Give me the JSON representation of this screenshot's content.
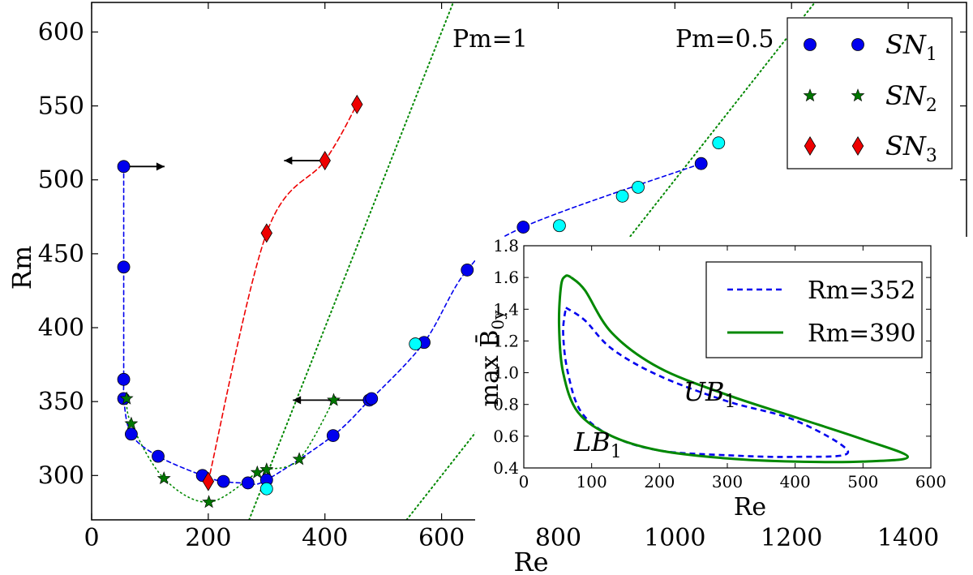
{
  "chart_data": [
    {
      "type": "scatter",
      "xlabel": "Re",
      "ylabel": "Rm",
      "xlim": [
        0,
        1500
      ],
      "ylim": [
        270,
        620
      ],
      "xticks": [
        0,
        200,
        400,
        600,
        800,
        1000,
        1200,
        1400
      ],
      "yticks": [
        300,
        350,
        400,
        450,
        500,
        550,
        600
      ],
      "grid": false,
      "legend_position": "top-right",
      "series": [
        {
          "name": "SN_1",
          "legend_main": "SN",
          "legend_sub": "1",
          "marker": "circle",
          "color": "#0000ee",
          "line_color": "#0000ee",
          "points": [
            [
              55,
              509
            ],
            [
              55,
              441
            ],
            [
              55,
              365
            ],
            [
              55,
              352
            ],
            [
              68,
              328
            ],
            [
              114,
              313
            ],
            [
              190,
              300
            ],
            [
              226,
              296
            ],
            [
              268,
              295
            ],
            [
              300,
              297
            ],
            [
              414,
              327
            ],
            [
              476,
              351
            ],
            [
              480,
              352
            ],
            [
              570,
              390
            ],
            [
              644,
              439
            ],
            [
              740,
              468
            ],
            [
              1045,
              511
            ]
          ]
        },
        {
          "name": "SN_1 (unstable)",
          "marker": "circle",
          "color": "#00ffff",
          "in_legend": false,
          "points": [
            [
              300,
              291
            ],
            [
              555,
              389
            ],
            [
              802,
              469
            ],
            [
              910,
              489
            ],
            [
              937,
              495
            ],
            [
              1075,
              525
            ]
          ]
        },
        {
          "name": "SN_2",
          "legend_main": "SN",
          "legend_sub": "2",
          "marker": "star",
          "color": "#007700",
          "line_color": "#008800",
          "points": [
            [
              60,
              352
            ],
            [
              68,
              335
            ],
            [
              124,
              298
            ],
            [
              201,
              282
            ],
            [
              284,
              302
            ],
            [
              300,
              304
            ],
            [
              356,
              311
            ],
            [
              415,
              351
            ]
          ]
        },
        {
          "name": "SN_3",
          "legend_main": "SN",
          "legend_sub": "3",
          "marker": "diamond",
          "color": "#ee0000",
          "line_color": "#ee0000",
          "points": [
            [
              200,
              296
            ],
            [
              300,
              464
            ],
            [
              400,
              513
            ],
            [
              455,
              551
            ]
          ]
        }
      ],
      "guide_lines": [
        {
          "label": "Pm=1",
          "pm": 1,
          "color": "#008800"
        },
        {
          "label": "Pm=0.5",
          "pm": 0.5,
          "color": "#008800"
        }
      ],
      "arrows": [
        {
          "from": [
            55,
            509
          ],
          "to": [
            125,
            509
          ]
        },
        {
          "from": [
            400,
            513
          ],
          "to": [
            330,
            513
          ]
        },
        {
          "from": [
            475,
            351
          ],
          "to": [
            405,
            351
          ]
        },
        {
          "from": [
            415,
            351
          ],
          "to": [
            345,
            351
          ]
        }
      ]
    },
    {
      "type": "line",
      "inset": true,
      "xlabel": "Re",
      "ylabel": "max B̄",
      "ylabel_sub": "0y",
      "xlim": [
        0,
        600
      ],
      "ylim": [
        0.4,
        1.8
      ],
      "xticks": [
        0,
        100,
        200,
        300,
        400,
        500,
        600
      ],
      "yticks": [
        0.4,
        0.6,
        0.8,
        1.0,
        1.2,
        1.4,
        1.6,
        1.8
      ],
      "legend_position": "top-right",
      "annotations": [
        {
          "main": "UB",
          "sub": "1",
          "x": 200,
          "y": 0.9
        },
        {
          "main": "LB",
          "sub": "1",
          "x": 5,
          "y": 0.55
        }
      ],
      "series": [
        {
          "name": "Rm=352",
          "style": "dashed",
          "color": "#0000ee",
          "points": [
            [
              62,
              1.41
            ],
            [
              90,
              1.33
            ],
            [
              130,
              1.15
            ],
            [
              200,
              0.98
            ],
            [
              300,
              0.82
            ],
            [
              400,
              0.7
            ],
            [
              478,
              0.5
            ],
            [
              400,
              0.47
            ],
            [
              300,
              0.48
            ],
            [
              200,
              0.51
            ],
            [
              130,
              0.6
            ],
            [
              85,
              0.75
            ],
            [
              65,
              1.0
            ],
            [
              58,
              1.25
            ],
            [
              62,
              1.41
            ]
          ]
        },
        {
          "name": "Rm=390",
          "style": "solid",
          "color": "#008800",
          "points": [
            [
              70,
              1.6
            ],
            [
              90,
              1.52
            ],
            [
              130,
              1.25
            ],
            [
              200,
              1.03
            ],
            [
              300,
              0.86
            ],
            [
              400,
              0.72
            ],
            [
              500,
              0.58
            ],
            [
              566,
              0.47
            ],
            [
              500,
              0.44
            ],
            [
              400,
              0.44
            ],
            [
              300,
              0.46
            ],
            [
              200,
              0.51
            ],
            [
              130,
              0.6
            ],
            [
              80,
              0.75
            ],
            [
              58,
              1.0
            ],
            [
              52,
              1.3
            ],
            [
              55,
              1.55
            ],
            [
              62,
              1.61
            ],
            [
              70,
              1.6
            ]
          ]
        }
      ]
    }
  ]
}
